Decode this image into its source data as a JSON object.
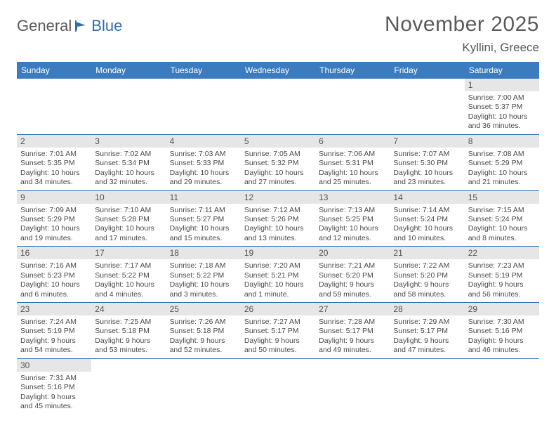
{
  "logo": {
    "text1": "General",
    "text2": "Blue"
  },
  "title": "November 2025",
  "location": "Kyllini, Greece",
  "colors": {
    "header_bg": "#3b7bbf",
    "row_divider": "#2f6fae",
    "daynum_bg": "#e6e6e6",
    "text": "#4a4a4a",
    "title_text": "#5a5a5a"
  },
  "weekdays": [
    "Sunday",
    "Monday",
    "Tuesday",
    "Wednesday",
    "Thursday",
    "Friday",
    "Saturday"
  ],
  "weeks": [
    [
      null,
      null,
      null,
      null,
      null,
      null,
      {
        "n": "1",
        "sunrise": "Sunrise: 7:00 AM",
        "sunset": "Sunset: 5:37 PM",
        "day": "Daylight: 10 hours and 36 minutes."
      }
    ],
    [
      {
        "n": "2",
        "sunrise": "Sunrise: 7:01 AM",
        "sunset": "Sunset: 5:35 PM",
        "day": "Daylight: 10 hours and 34 minutes."
      },
      {
        "n": "3",
        "sunrise": "Sunrise: 7:02 AM",
        "sunset": "Sunset: 5:34 PM",
        "day": "Daylight: 10 hours and 32 minutes."
      },
      {
        "n": "4",
        "sunrise": "Sunrise: 7:03 AM",
        "sunset": "Sunset: 5:33 PM",
        "day": "Daylight: 10 hours and 29 minutes."
      },
      {
        "n": "5",
        "sunrise": "Sunrise: 7:05 AM",
        "sunset": "Sunset: 5:32 PM",
        "day": "Daylight: 10 hours and 27 minutes."
      },
      {
        "n": "6",
        "sunrise": "Sunrise: 7:06 AM",
        "sunset": "Sunset: 5:31 PM",
        "day": "Daylight: 10 hours and 25 minutes."
      },
      {
        "n": "7",
        "sunrise": "Sunrise: 7:07 AM",
        "sunset": "Sunset: 5:30 PM",
        "day": "Daylight: 10 hours and 23 minutes."
      },
      {
        "n": "8",
        "sunrise": "Sunrise: 7:08 AM",
        "sunset": "Sunset: 5:29 PM",
        "day": "Daylight: 10 hours and 21 minutes."
      }
    ],
    [
      {
        "n": "9",
        "sunrise": "Sunrise: 7:09 AM",
        "sunset": "Sunset: 5:29 PM",
        "day": "Daylight: 10 hours and 19 minutes."
      },
      {
        "n": "10",
        "sunrise": "Sunrise: 7:10 AM",
        "sunset": "Sunset: 5:28 PM",
        "day": "Daylight: 10 hours and 17 minutes."
      },
      {
        "n": "11",
        "sunrise": "Sunrise: 7:11 AM",
        "sunset": "Sunset: 5:27 PM",
        "day": "Daylight: 10 hours and 15 minutes."
      },
      {
        "n": "12",
        "sunrise": "Sunrise: 7:12 AM",
        "sunset": "Sunset: 5:26 PM",
        "day": "Daylight: 10 hours and 13 minutes."
      },
      {
        "n": "13",
        "sunrise": "Sunrise: 7:13 AM",
        "sunset": "Sunset: 5:25 PM",
        "day": "Daylight: 10 hours and 12 minutes."
      },
      {
        "n": "14",
        "sunrise": "Sunrise: 7:14 AM",
        "sunset": "Sunset: 5:24 PM",
        "day": "Daylight: 10 hours and 10 minutes."
      },
      {
        "n": "15",
        "sunrise": "Sunrise: 7:15 AM",
        "sunset": "Sunset: 5:24 PM",
        "day": "Daylight: 10 hours and 8 minutes."
      }
    ],
    [
      {
        "n": "16",
        "sunrise": "Sunrise: 7:16 AM",
        "sunset": "Sunset: 5:23 PM",
        "day": "Daylight: 10 hours and 6 minutes."
      },
      {
        "n": "17",
        "sunrise": "Sunrise: 7:17 AM",
        "sunset": "Sunset: 5:22 PM",
        "day": "Daylight: 10 hours and 4 minutes."
      },
      {
        "n": "18",
        "sunrise": "Sunrise: 7:18 AM",
        "sunset": "Sunset: 5:22 PM",
        "day": "Daylight: 10 hours and 3 minutes."
      },
      {
        "n": "19",
        "sunrise": "Sunrise: 7:20 AM",
        "sunset": "Sunset: 5:21 PM",
        "day": "Daylight: 10 hours and 1 minute."
      },
      {
        "n": "20",
        "sunrise": "Sunrise: 7:21 AM",
        "sunset": "Sunset: 5:20 PM",
        "day": "Daylight: 9 hours and 59 minutes."
      },
      {
        "n": "21",
        "sunrise": "Sunrise: 7:22 AM",
        "sunset": "Sunset: 5:20 PM",
        "day": "Daylight: 9 hours and 58 minutes."
      },
      {
        "n": "22",
        "sunrise": "Sunrise: 7:23 AM",
        "sunset": "Sunset: 5:19 PM",
        "day": "Daylight: 9 hours and 56 minutes."
      }
    ],
    [
      {
        "n": "23",
        "sunrise": "Sunrise: 7:24 AM",
        "sunset": "Sunset: 5:19 PM",
        "day": "Daylight: 9 hours and 54 minutes."
      },
      {
        "n": "24",
        "sunrise": "Sunrise: 7:25 AM",
        "sunset": "Sunset: 5:18 PM",
        "day": "Daylight: 9 hours and 53 minutes."
      },
      {
        "n": "25",
        "sunrise": "Sunrise: 7:26 AM",
        "sunset": "Sunset: 5:18 PM",
        "day": "Daylight: 9 hours and 52 minutes."
      },
      {
        "n": "26",
        "sunrise": "Sunrise: 7:27 AM",
        "sunset": "Sunset: 5:17 PM",
        "day": "Daylight: 9 hours and 50 minutes."
      },
      {
        "n": "27",
        "sunrise": "Sunrise: 7:28 AM",
        "sunset": "Sunset: 5:17 PM",
        "day": "Daylight: 9 hours and 49 minutes."
      },
      {
        "n": "28",
        "sunrise": "Sunrise: 7:29 AM",
        "sunset": "Sunset: 5:17 PM",
        "day": "Daylight: 9 hours and 47 minutes."
      },
      {
        "n": "29",
        "sunrise": "Sunrise: 7:30 AM",
        "sunset": "Sunset: 5:16 PM",
        "day": "Daylight: 9 hours and 46 minutes."
      }
    ],
    [
      {
        "n": "30",
        "sunrise": "Sunrise: 7:31 AM",
        "sunset": "Sunset: 5:16 PM",
        "day": "Daylight: 9 hours and 45 minutes."
      },
      null,
      null,
      null,
      null,
      null,
      null
    ]
  ]
}
